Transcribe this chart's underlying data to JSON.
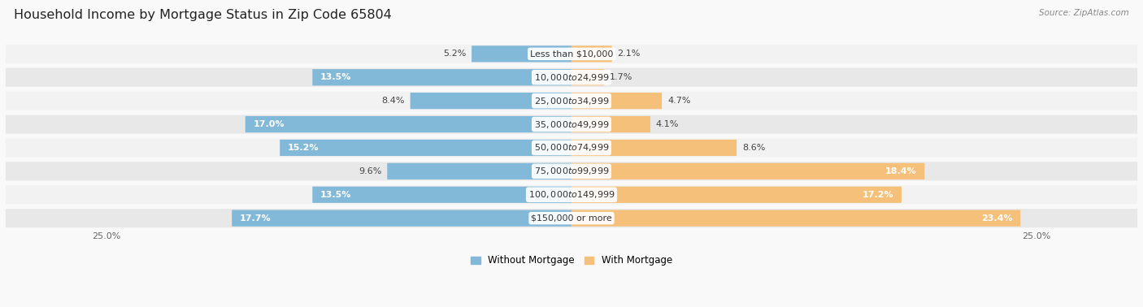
{
  "title": "Household Income by Mortgage Status in Zip Code 65804",
  "source": "Source: ZipAtlas.com",
  "categories": [
    "Less than $10,000",
    "$10,000 to $24,999",
    "$25,000 to $34,999",
    "$35,000 to $49,999",
    "$50,000 to $74,999",
    "$75,000 to $99,999",
    "$100,000 to $149,999",
    "$150,000 or more"
  ],
  "without_mortgage": [
    5.2,
    13.5,
    8.4,
    17.0,
    15.2,
    9.6,
    13.5,
    17.7
  ],
  "with_mortgage": [
    2.1,
    1.7,
    4.7,
    4.1,
    8.6,
    18.4,
    17.2,
    23.4
  ],
  "blue_color": "#82B8D8",
  "orange_color": "#F5C07A",
  "row_colors": [
    "#E8E8E8",
    "#F2F2F2"
  ],
  "fig_bg": "#F9F9F9",
  "xlim": 25.0,
  "bar_height": 0.68,
  "legend_without": "Without Mortgage",
  "legend_with": "With Mortgage",
  "title_fontsize": 11.5,
  "label_fontsize": 8.0,
  "cat_fontsize": 8.0
}
